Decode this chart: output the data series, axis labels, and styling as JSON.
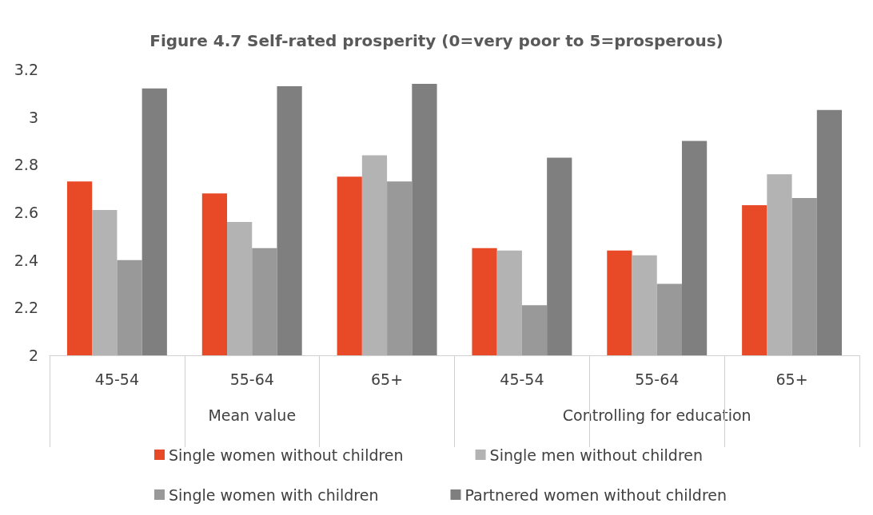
{
  "chart_data": {
    "type": "bar",
    "title": "Figure 4.7 Self-rated prosperity (0=very poor to 5=prosperous)",
    "categories": [
      "45-54",
      "55-64",
      "65+",
      "45-54",
      "55-64",
      "65+"
    ],
    "series": [
      {
        "name": "Single women without children",
        "color": "#e84a27",
        "values": [
          2.73,
          2.68,
          2.75,
          2.45,
          2.44,
          2.63
        ]
      },
      {
        "name": "Single men without children",
        "color": "#b3b3b3",
        "values": [
          2.61,
          2.56,
          2.84,
          2.44,
          2.42,
          2.76
        ]
      },
      {
        "name": "Single women with children",
        "color": "#999999",
        "values": [
          2.4,
          2.45,
          2.73,
          2.21,
          2.3,
          2.66
        ]
      },
      {
        "name": "Partnered women without children",
        "color": "#7f7f7f",
        "values": [
          3.12,
          3.13,
          3.14,
          2.83,
          2.9,
          3.03
        ]
      }
    ],
    "ylim": [
      2,
      3.2
    ],
    "yticks": [
      2,
      2.2,
      2.4,
      2.6,
      2.8,
      3,
      3.2
    ],
    "annotations": [
      "Mean value",
      "Controlling for education"
    ],
    "grid": false,
    "legend": "bottom"
  }
}
